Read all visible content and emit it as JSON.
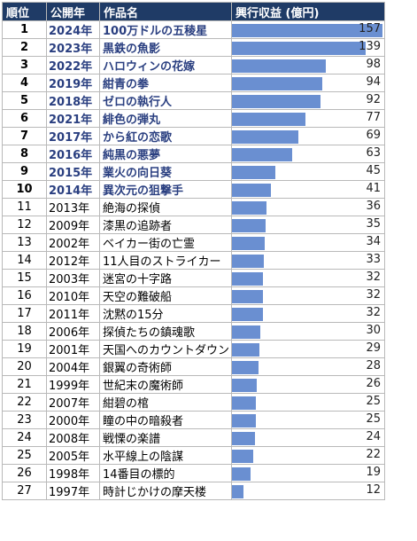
{
  "colors": {
    "header_bg": "#1f3b66",
    "header_text": "#ffffff",
    "bar": "#6a8fd1",
    "top_text": "#2a3f80"
  },
  "headers": {
    "rank": "順位",
    "year": "公開年",
    "title": "作品名",
    "revenue": "興行収益 (億円)"
  },
  "chart_data": {
    "type": "bar",
    "orientation": "horizontal",
    "title": "",
    "xlabel": "",
    "ylabel": "",
    "ylim": [
      0,
      157
    ],
    "highlight_top_n": 10,
    "rows": [
      {
        "rank": "1",
        "year": "2024年",
        "title": "100万ドルの五稜星",
        "value": 157
      },
      {
        "rank": "2",
        "year": "2023年",
        "title": "黒鉄の魚影",
        "value": 139
      },
      {
        "rank": "3",
        "year": "2022年",
        "title": "ハロウィンの花嫁",
        "value": 98
      },
      {
        "rank": "4",
        "year": "2019年",
        "title": "紺青の拳",
        "value": 94
      },
      {
        "rank": "5",
        "year": "2018年",
        "title": "ゼロの執行人",
        "value": 92
      },
      {
        "rank": "6",
        "year": "2021年",
        "title": "緋色の弾丸",
        "value": 77
      },
      {
        "rank": "7",
        "year": "2017年",
        "title": "から紅の恋歌",
        "value": 69
      },
      {
        "rank": "8",
        "year": "2016年",
        "title": "純黒の悪夢",
        "value": 63
      },
      {
        "rank": "9",
        "year": "2015年",
        "title": "業火の向日葵",
        "value": 45
      },
      {
        "rank": "10",
        "year": "2014年",
        "title": "異次元の狙撃手",
        "value": 41
      },
      {
        "rank": "11",
        "year": "2013年",
        "title": "絶海の探偵",
        "value": 36
      },
      {
        "rank": "12",
        "year": "2009年",
        "title": "漆黒の追跡者",
        "value": 35
      },
      {
        "rank": "13",
        "year": "2002年",
        "title": "ベイカー街の亡霊",
        "value": 34
      },
      {
        "rank": "14",
        "year": "2012年",
        "title": "11人目のストライカー",
        "value": 33
      },
      {
        "rank": "15",
        "year": "2003年",
        "title": "迷宮の十字路",
        "value": 32
      },
      {
        "rank": "16",
        "year": "2010年",
        "title": "天空の難破船",
        "value": 32
      },
      {
        "rank": "17",
        "year": "2011年",
        "title": "沈黙の15分",
        "value": 32
      },
      {
        "rank": "18",
        "year": "2006年",
        "title": "探偵たちの鎮魂歌",
        "value": 30
      },
      {
        "rank": "19",
        "year": "2001年",
        "title": "天国へのカウントダウン",
        "value": 29
      },
      {
        "rank": "20",
        "year": "2004年",
        "title": "銀翼の奇術師",
        "value": 28
      },
      {
        "rank": "21",
        "year": "1999年",
        "title": "世紀末の魔術師",
        "value": 26
      },
      {
        "rank": "22",
        "year": "2007年",
        "title": "紺碧の棺",
        "value": 25
      },
      {
        "rank": "23",
        "year": "2000年",
        "title": "瞳の中の暗殺者",
        "value": 25
      },
      {
        "rank": "24",
        "year": "2008年",
        "title": "戦慄の楽譜",
        "value": 24
      },
      {
        "rank": "25",
        "year": "2005年",
        "title": "水平線上の陰謀",
        "value": 22
      },
      {
        "rank": "26",
        "year": "1998年",
        "title": "14番目の標的",
        "value": 19
      },
      {
        "rank": "27",
        "year": "1997年",
        "title": "時計じかけの摩天楼",
        "value": 12
      }
    ]
  }
}
